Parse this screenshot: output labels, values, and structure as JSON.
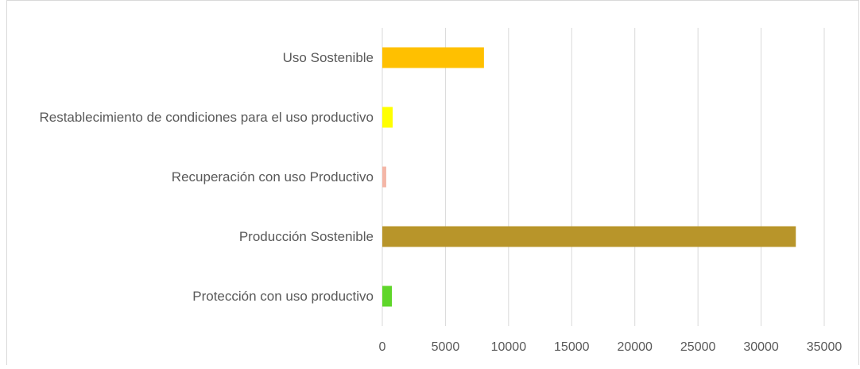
{
  "chart_data": {
    "type": "bar",
    "orientation": "horizontal",
    "categories": [
      "Uso Sostenible",
      "Restablecimiento de condiciones para el uso productivo",
      "Recuperación con uso Productivo",
      "Producción Sostenible",
      "Protección con uso productivo"
    ],
    "values": [
      8050,
      820,
      310,
      32750,
      760
    ],
    "colors": [
      "#ffc000",
      "#ffff00",
      "#f4b6a6",
      "#b8952a",
      "#5fd62a"
    ],
    "xlim": [
      0,
      35000
    ],
    "xticks": [
      0,
      5000,
      10000,
      15000,
      20000,
      25000,
      30000,
      35000
    ],
    "grid": true
  }
}
